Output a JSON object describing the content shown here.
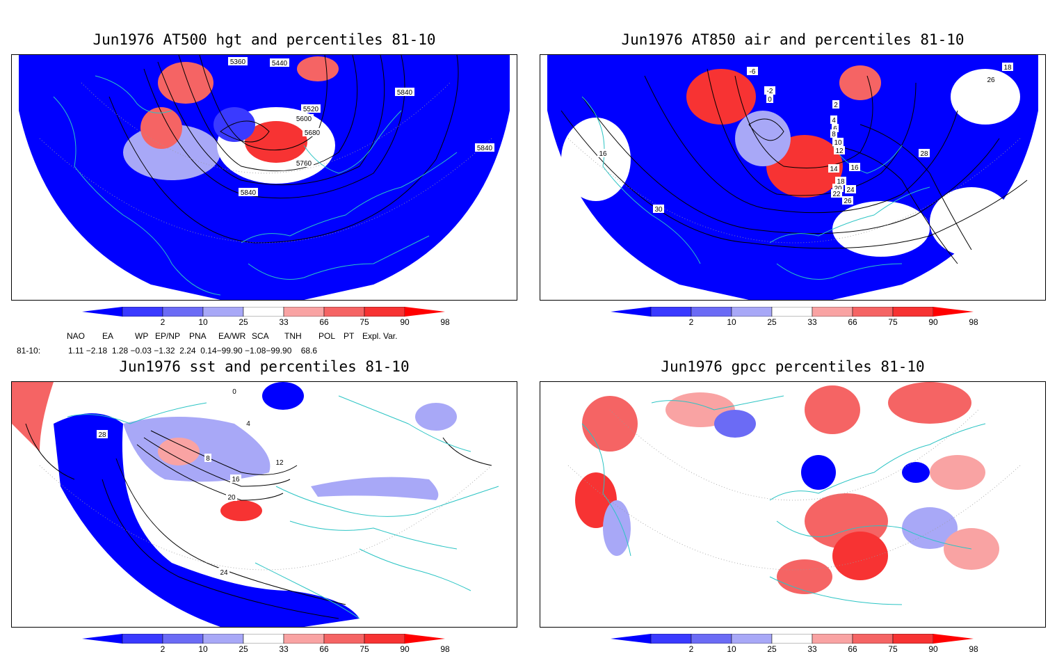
{
  "panels": [
    {
      "id": "p1",
      "title": "Jun1976 AT500 hgt and percentiles 81-10",
      "contour_labels": [
        "5360",
        "5440",
        "5520",
        "5600",
        "5680",
        "5760",
        "5840",
        "5840",
        "5840"
      ]
    },
    {
      "id": "p2",
      "title": "Jun1976 AT850 air and percentiles 81-10",
      "contour_labels": [
        "-6",
        "-2",
        "0",
        "2",
        "4",
        "6",
        "8",
        "10",
        "12",
        "14",
        "16",
        "18",
        "20",
        "22",
        "24",
        "26",
        "28",
        "30",
        "16",
        "18",
        "26"
      ]
    },
    {
      "id": "p3",
      "title": "Jun1976 sst and percentiles 81-10",
      "contour_labels": [
        "0",
        "4",
        "8",
        "12",
        "16",
        "20",
        "24",
        "28"
      ]
    },
    {
      "id": "p4",
      "title": "Jun1976 gpcc percentiles 81-10",
      "contour_labels": []
    }
  ],
  "colorbar": {
    "labels": [
      "2",
      "10",
      "25",
      "33",
      "66",
      "75",
      "90",
      "98"
    ],
    "colors": [
      "#0000ff",
      "#3a3aff",
      "#6b6bf5",
      "#a8a8f7",
      "#ffffff",
      "#f9a3a3",
      "#f56464",
      "#f73333",
      "#ff0000"
    ]
  },
  "indices": {
    "headers": [
      "NAO",
      "EA",
      "WP",
      "EP/NP",
      "PNA",
      "EA/WR",
      "SCA",
      "TNH",
      "POL",
      "PT",
      "Expl. Var."
    ],
    "row_label": "81-10:",
    "values_line": "1.11 −2.18  1.28 −0.03 −1.32  2.24  0.14−99.90 −1.08−99.90    68.6"
  }
}
